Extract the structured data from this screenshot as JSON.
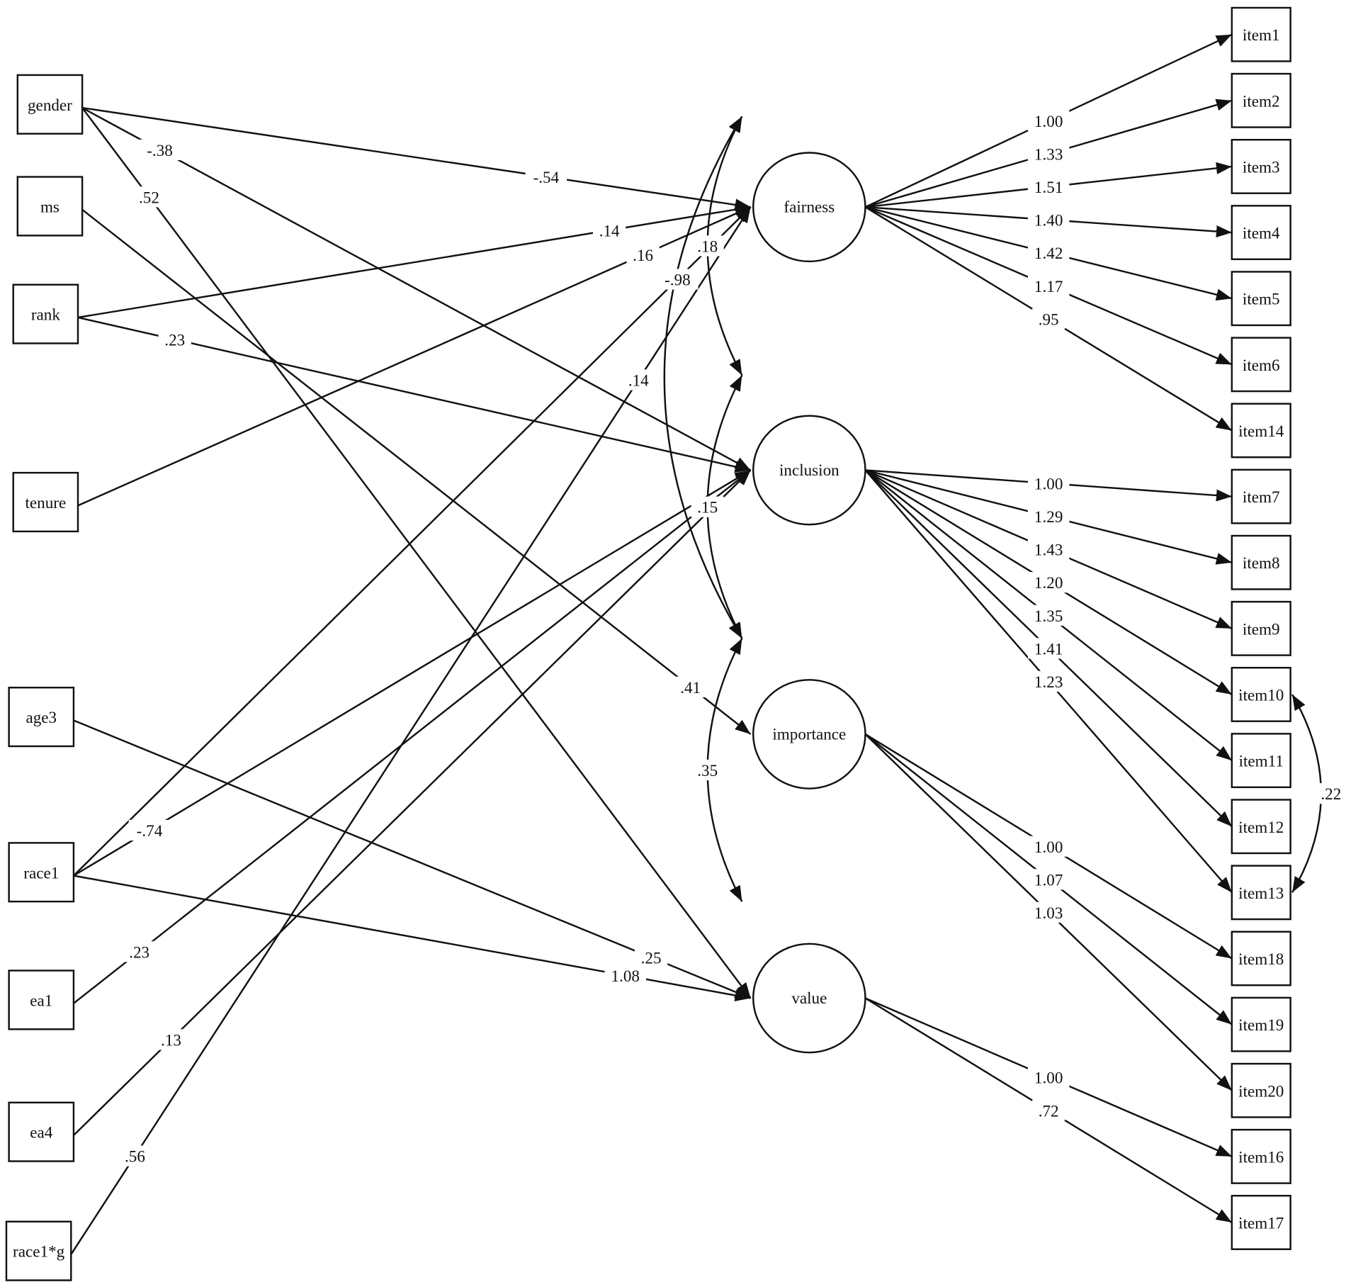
{
  "observed_predictors": [
    "gender",
    "ms",
    "rank",
    "tenure",
    "age3",
    "race1",
    "ea1",
    "ea4",
    "race1*g"
  ],
  "latents": [
    "fairness",
    "inclusion",
    "importance",
    "value"
  ],
  "items": [
    "item1",
    "item2",
    "item3",
    "item4",
    "item5",
    "item6",
    "item14",
    "item7",
    "item8",
    "item9",
    "item10",
    "item11",
    "item12",
    "item13",
    "item18",
    "item19",
    "item20",
    "item16",
    "item17"
  ],
  "structural_paths": [
    {
      "from": "gender",
      "to": "fairness",
      "labels": [
        "-.54"
      ]
    },
    {
      "from": "gender",
      "to": "inclusion",
      "labels": [
        "-.38"
      ]
    },
    {
      "from": "gender",
      "to": "value",
      "labels": [
        ".52"
      ]
    },
    {
      "from": "ms",
      "to": "importance",
      "labels": [
        ".41"
      ]
    },
    {
      "from": "rank",
      "to": "fairness",
      "labels": [
        ".14"
      ]
    },
    {
      "from": "rank",
      "to": "inclusion",
      "labels": [
        ".23"
      ]
    },
    {
      "from": "tenure",
      "to": "fairness",
      "labels": [
        ".16"
      ]
    },
    {
      "from": "race1",
      "to": "fairness",
      "labels": [
        "-.98"
      ]
    },
    {
      "from": "race1",
      "to": "inclusion",
      "labels": [
        "-.74"
      ]
    },
    {
      "from": "race1",
      "to": "value",
      "labels": [
        "1.08"
      ]
    },
    {
      "from": "age3",
      "to": "value",
      "labels": [
        ".25"
      ]
    },
    {
      "from": "ea1",
      "to": "inclusion",
      "labels": [
        ".23"
      ]
    },
    {
      "from": "ea4",
      "to": "inclusion",
      "labels": [
        ".13"
      ]
    },
    {
      "from": "race1*g",
      "to": "fairness",
      "labels": [
        ".56",
        ".14"
      ]
    }
  ],
  "loadings": [
    {
      "from": "fairness",
      "to": "item1",
      "label": "1.00"
    },
    {
      "from": "fairness",
      "to": "item2",
      "label": "1.33"
    },
    {
      "from": "fairness",
      "to": "item3",
      "label": "1.51"
    },
    {
      "from": "fairness",
      "to": "item4",
      "label": "1.40"
    },
    {
      "from": "fairness",
      "to": "item5",
      "label": "1.42"
    },
    {
      "from": "fairness",
      "to": "item6",
      "label": "1.17"
    },
    {
      "from": "fairness",
      "to": "item14",
      "label": ".95"
    },
    {
      "from": "inclusion",
      "to": "item7",
      "label": "1.00"
    },
    {
      "from": "inclusion",
      "to": "item8",
      "label": "1.29"
    },
    {
      "from": "inclusion",
      "to": "item9",
      "label": "1.43"
    },
    {
      "from": "inclusion",
      "to": "item10",
      "label": "1.20"
    },
    {
      "from": "inclusion",
      "to": "item11",
      "label": "1.35"
    },
    {
      "from": "inclusion",
      "to": "item12",
      "label": "1.41"
    },
    {
      "from": "inclusion",
      "to": "item13",
      "label": "1.23"
    },
    {
      "from": "importance",
      "to": "item18",
      "label": "1.00"
    },
    {
      "from": "importance",
      "to": "item19",
      "label": "1.07"
    },
    {
      "from": "importance",
      "to": "item20",
      "label": "1.03"
    },
    {
      "from": "value",
      "to": "item16",
      "label": "1.00"
    },
    {
      "from": "value",
      "to": "item17",
      "label": ".72"
    }
  ],
  "latent_covariances": [
    {
      "a": "fairness",
      "b": "inclusion",
      "label": ".18"
    },
    {
      "a": "inclusion",
      "b": "importance",
      "label": ".15"
    },
    {
      "a": "importance",
      "b": "value",
      "label": ".35"
    },
    {
      "a": "fairness",
      "b": "importance",
      "label": ""
    }
  ],
  "item_covariances": [
    {
      "a": "item10",
      "b": "item13",
      "label": ".22"
    }
  ],
  "colors": {
    "line": "#111111",
    "background": "#ffffff"
  }
}
